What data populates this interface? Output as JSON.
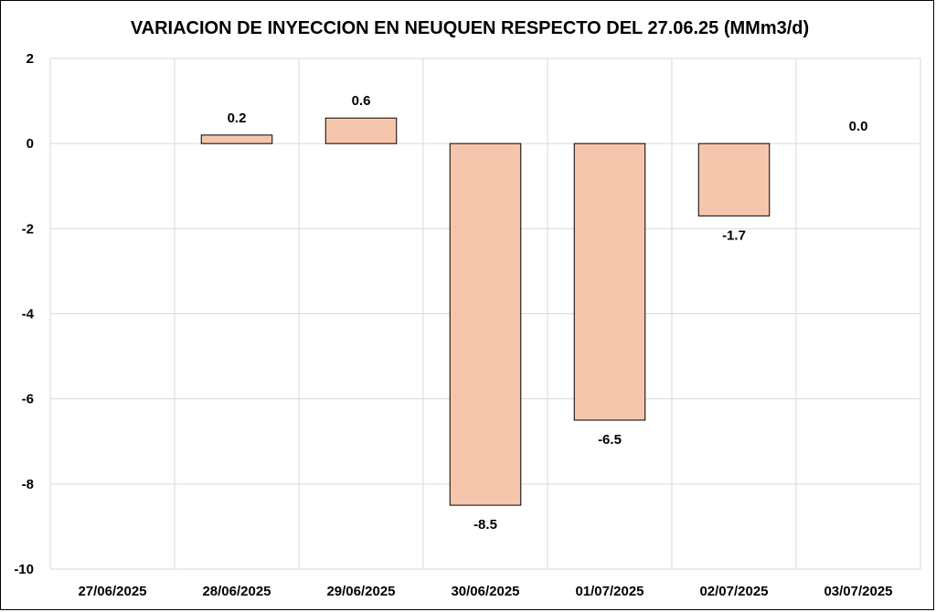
{
  "chart_data": {
    "type": "bar",
    "title": "VARIACION DE INYECCION EN NEUQUEN RESPECTO DEL 27.06.25 (MMm3/d)",
    "categories": [
      "27/06/2025",
      "28/06/2025",
      "29/06/2025",
      "30/06/2025",
      "01/07/2025",
      "02/07/2025",
      "03/07/2025"
    ],
    "values": [
      null,
      0.2,
      0.6,
      -8.5,
      -6.5,
      -1.7,
      0.0
    ],
    "data_labels": [
      "",
      "0.2",
      "0.6",
      "-8.5",
      "-6.5",
      "-1.7",
      "0.0"
    ],
    "xlabel": "",
    "ylabel": "",
    "ylim": [
      -10,
      2
    ],
    "yticks": [
      2,
      0,
      -2,
      -4,
      -6,
      -8,
      -10
    ],
    "grid": true,
    "legend": "none",
    "bar_color": "#f5c6ac"
  }
}
